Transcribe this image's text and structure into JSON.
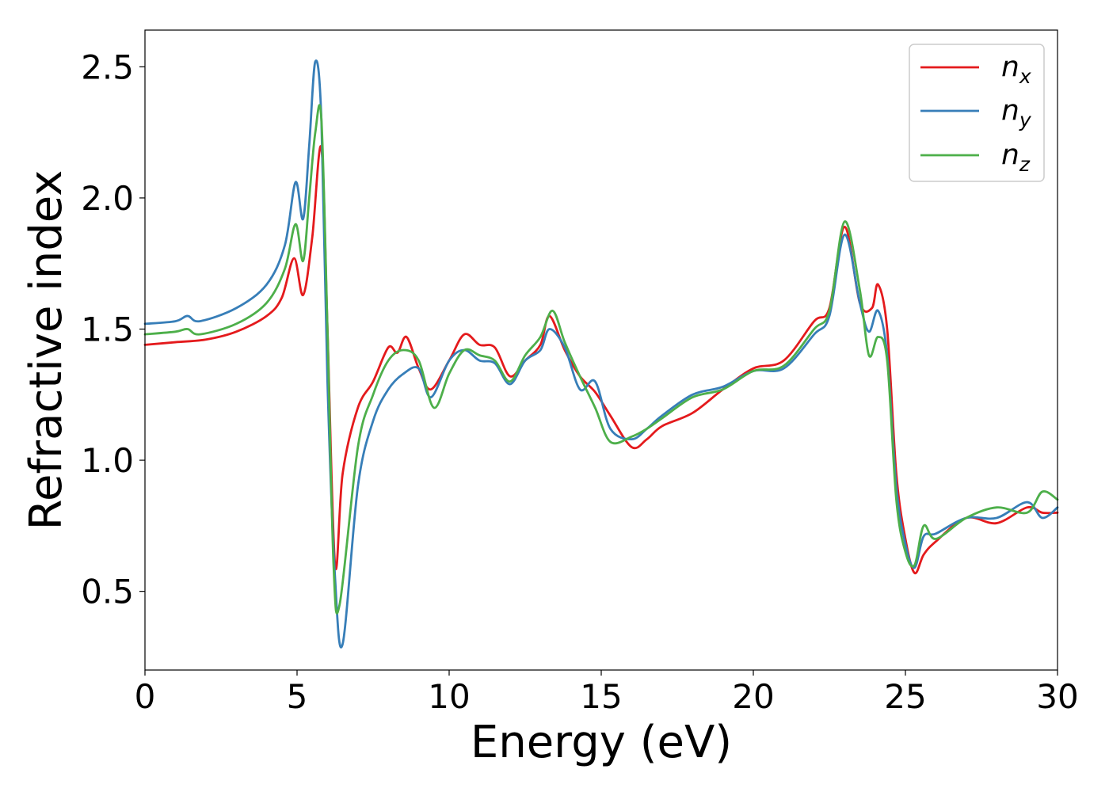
{
  "chart_data": {
    "type": "line",
    "xlabel": "Energy (eV)",
    "ylabel": "Refractive index",
    "xlim": [
      0,
      30
    ],
    "ylim": [
      0.2,
      2.64
    ],
    "xticks": [
      "0",
      "5",
      "10",
      "15",
      "20",
      "25",
      "30"
    ],
    "xtick_values": [
      0,
      5,
      10,
      15,
      20,
      25,
      30
    ],
    "yticks": [
      "0.5",
      "1.0",
      "1.5",
      "2.0",
      "2.5"
    ],
    "ytick_values": [
      0.5,
      1.0,
      1.5,
      2.0,
      2.5
    ],
    "grid": false,
    "legend_position": "top-right",
    "series": [
      {
        "name": "n",
        "subscript": "x",
        "color": "#e41a1c",
        "x": [
          0,
          1,
          2,
          3,
          4,
          4.5,
          4.9,
          5.2,
          5.5,
          5.8,
          6.0,
          6.25,
          6.5,
          7.0,
          7.5,
          8.0,
          8.3,
          8.6,
          9.0,
          9.4,
          10.0,
          10.5,
          11.0,
          11.5,
          12.0,
          12.5,
          13.0,
          13.3,
          13.8,
          14.3,
          14.8,
          15.3,
          16.0,
          16.5,
          17.0,
          18.0,
          19.0,
          20.0,
          21.0,
          22.0,
          22.5,
          23.0,
          23.5,
          23.9,
          24.1,
          24.4,
          24.7,
          25.0,
          25.3,
          25.6,
          26.0,
          27.0,
          28.0,
          29.0,
          29.5,
          30.0
        ],
        "y": [
          1.44,
          1.45,
          1.46,
          1.49,
          1.55,
          1.62,
          1.77,
          1.63,
          1.85,
          2.19,
          1.5,
          0.6,
          0.95,
          1.2,
          1.3,
          1.43,
          1.41,
          1.47,
          1.35,
          1.27,
          1.38,
          1.48,
          1.44,
          1.43,
          1.32,
          1.38,
          1.44,
          1.55,
          1.42,
          1.32,
          1.26,
          1.17,
          1.05,
          1.08,
          1.13,
          1.18,
          1.27,
          1.35,
          1.38,
          1.53,
          1.58,
          1.89,
          1.6,
          1.58,
          1.67,
          1.5,
          0.95,
          0.7,
          0.57,
          0.64,
          0.69,
          0.78,
          0.76,
          0.82,
          0.8,
          0.8
        ]
      },
      {
        "name": "n",
        "subscript": "y",
        "color": "#377eb8",
        "x": [
          0,
          1,
          1.4,
          1.8,
          3,
          4,
          4.6,
          4.95,
          5.2,
          5.4,
          5.6,
          5.8,
          6.0,
          6.25,
          6.5,
          7.0,
          7.5,
          8.0,
          8.5,
          9.0,
          9.4,
          10.0,
          10.5,
          11.0,
          11.5,
          12.0,
          12.5,
          13.0,
          13.3,
          13.8,
          14.3,
          14.8,
          15.3,
          16.0,
          16.5,
          17.0,
          18.0,
          19.0,
          20.0,
          21.0,
          22.0,
          22.5,
          23.0,
          23.5,
          23.8,
          24.1,
          24.4,
          24.7,
          25.0,
          25.3,
          25.6,
          26.0,
          27.0,
          28.0,
          29.0,
          29.5,
          30.0
        ],
        "y": [
          1.52,
          1.53,
          1.55,
          1.53,
          1.58,
          1.67,
          1.82,
          2.06,
          1.92,
          2.2,
          2.52,
          2.3,
          1.3,
          0.55,
          0.3,
          0.9,
          1.15,
          1.27,
          1.33,
          1.35,
          1.24,
          1.38,
          1.42,
          1.38,
          1.37,
          1.29,
          1.38,
          1.42,
          1.5,
          1.43,
          1.27,
          1.3,
          1.12,
          1.08,
          1.12,
          1.17,
          1.25,
          1.28,
          1.34,
          1.35,
          1.48,
          1.55,
          1.86,
          1.6,
          1.49,
          1.57,
          1.4,
          0.9,
          0.68,
          0.59,
          0.71,
          0.72,
          0.78,
          0.78,
          0.84,
          0.78,
          0.82
        ]
      },
      {
        "name": "n",
        "subscript": "z",
        "color": "#4daf4a",
        "x": [
          0,
          1,
          1.4,
          1.8,
          3,
          4,
          4.6,
          4.95,
          5.2,
          5.4,
          5.6,
          5.8,
          6.0,
          6.2,
          6.4,
          7.0,
          7.5,
          8.0,
          8.5,
          9.0,
          9.5,
          10.0,
          10.5,
          11.0,
          11.5,
          12.0,
          12.5,
          13.0,
          13.4,
          13.8,
          14.3,
          14.8,
          15.3,
          16.0,
          16.5,
          17.0,
          18.0,
          19.0,
          20.0,
          21.0,
          22.0,
          22.5,
          23.0,
          23.5,
          23.8,
          24.1,
          24.4,
          24.7,
          25.0,
          25.3,
          25.6,
          26.0,
          27.0,
          28.0,
          29.0,
          29.5,
          30.0
        ],
        "y": [
          1.48,
          1.49,
          1.5,
          1.48,
          1.52,
          1.6,
          1.73,
          1.9,
          1.76,
          2.0,
          2.25,
          2.3,
          1.5,
          0.6,
          0.45,
          1.05,
          1.25,
          1.38,
          1.42,
          1.38,
          1.2,
          1.33,
          1.42,
          1.4,
          1.38,
          1.3,
          1.4,
          1.47,
          1.57,
          1.45,
          1.32,
          1.2,
          1.07,
          1.09,
          1.12,
          1.16,
          1.24,
          1.27,
          1.34,
          1.36,
          1.5,
          1.57,
          1.91,
          1.65,
          1.4,
          1.47,
          1.38,
          0.85,
          0.65,
          0.6,
          0.75,
          0.7,
          0.78,
          0.82,
          0.8,
          0.88,
          0.85
        ]
      }
    ]
  }
}
